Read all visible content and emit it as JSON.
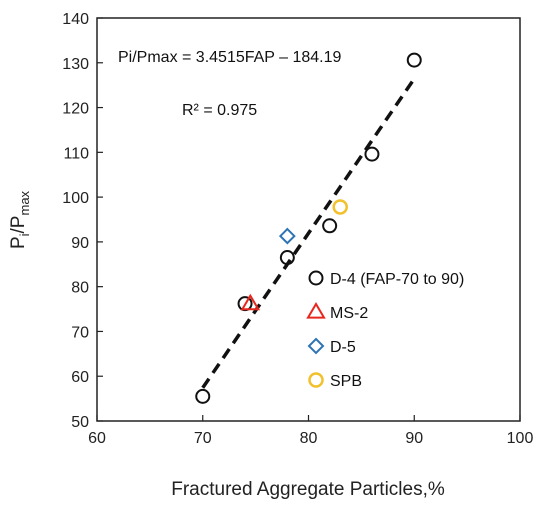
{
  "chart_data": {
    "type": "scatter",
    "xlabel": "Fractured Aggregate Particles,%",
    "ylabel": {
      "main": "P",
      "sub1": "i",
      "sep": "/P",
      "sub2": "max"
    },
    "xlim": [
      60,
      100
    ],
    "ylim": [
      50,
      140
    ],
    "xticks": [
      60,
      70,
      80,
      90,
      100
    ],
    "yticks": [
      50,
      60,
      70,
      80,
      90,
      100,
      110,
      120,
      130,
      140
    ],
    "grid": false,
    "legend_position": "bottom-right",
    "series": [
      {
        "name": "D-4 (FAP-70 to 90)",
        "marker": "circle",
        "color": "#111111",
        "points": [
          {
            "x": 70,
            "y": 55.5
          },
          {
            "x": 74,
            "y": 76.2
          },
          {
            "x": 78,
            "y": 86.5
          },
          {
            "x": 82,
            "y": 93.6
          },
          {
            "x": 86,
            "y": 109.6
          },
          {
            "x": 90,
            "y": 130.6
          }
        ]
      },
      {
        "name": "MS-2",
        "marker": "triangle",
        "color": "#e8281e",
        "points": [
          {
            "x": 74.5,
            "y": 76.2
          }
        ]
      },
      {
        "name": "D-5",
        "marker": "diamond",
        "color": "#2e74b5",
        "points": [
          {
            "x": 78,
            "y": 91.3
          }
        ]
      },
      {
        "name": "SPB",
        "marker": "circle",
        "color": "#f2c12e",
        "points": [
          {
            "x": 83,
            "y": 97.8
          }
        ]
      }
    ],
    "trendline": {
      "style": "dashed",
      "color": "#111111",
      "slope": 3.4515,
      "intercept": -184.19,
      "x_range": [
        70,
        90
      ]
    },
    "annotations": {
      "equation": "Pi/Pmax = 3.4515FAP – 184.19",
      "r_squared": "R² = 0.975"
    }
  }
}
